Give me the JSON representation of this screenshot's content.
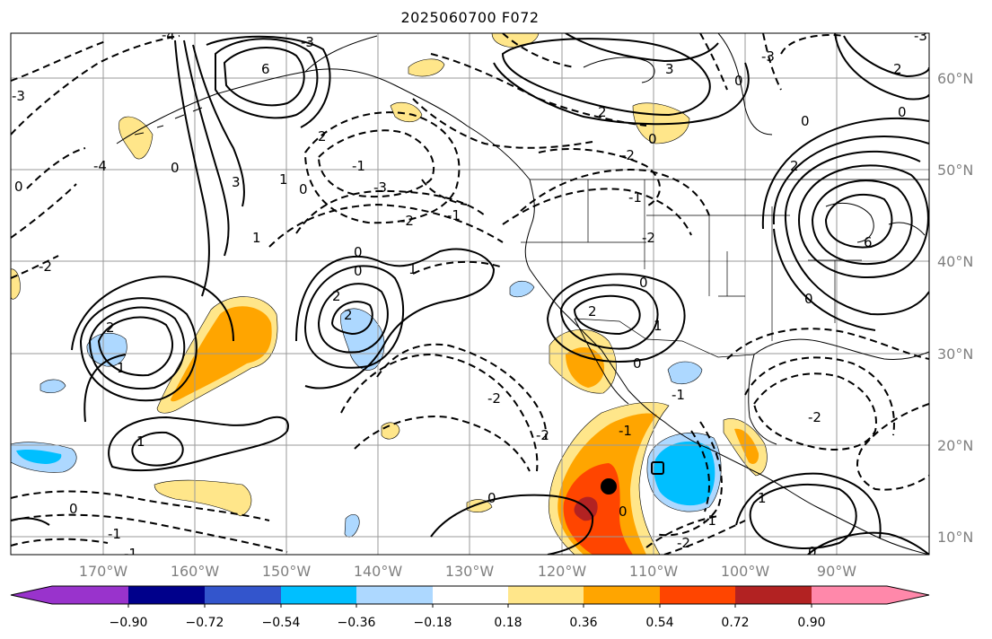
{
  "title": "2025060700 F072",
  "lat_labels": [
    "60°N",
    "50°N",
    "40°N",
    "30°N",
    "20°N",
    "10°N"
  ],
  "lon_labels": [
    "170°W",
    "160°W",
    "150°W",
    "140°W",
    "130°W",
    "120°W",
    "110°W",
    "100°W",
    "90°W"
  ],
  "colorbar": {
    "colors": [
      "#9933cc",
      "#00008b",
      "#3355cc",
      "#00bfff",
      "#add8ff",
      "#ffffff",
      "#ffe68a",
      "#ffa500",
      "#ff4500",
      "#b22222",
      "#ff88aa"
    ],
    "tick_labels": [
      "−0.90",
      "−0.72",
      "−0.54",
      "−0.36",
      "−0.18",
      "0.18",
      "0.36",
      "0.54",
      "0.72",
      "0.90"
    ]
  },
  "contour_labels": [
    "-4",
    "-3",
    "-2",
    "-1",
    "0",
    "1",
    "2",
    "3",
    "6"
  ],
  "markers": [
    "filled-circle",
    "open-square"
  ]
}
